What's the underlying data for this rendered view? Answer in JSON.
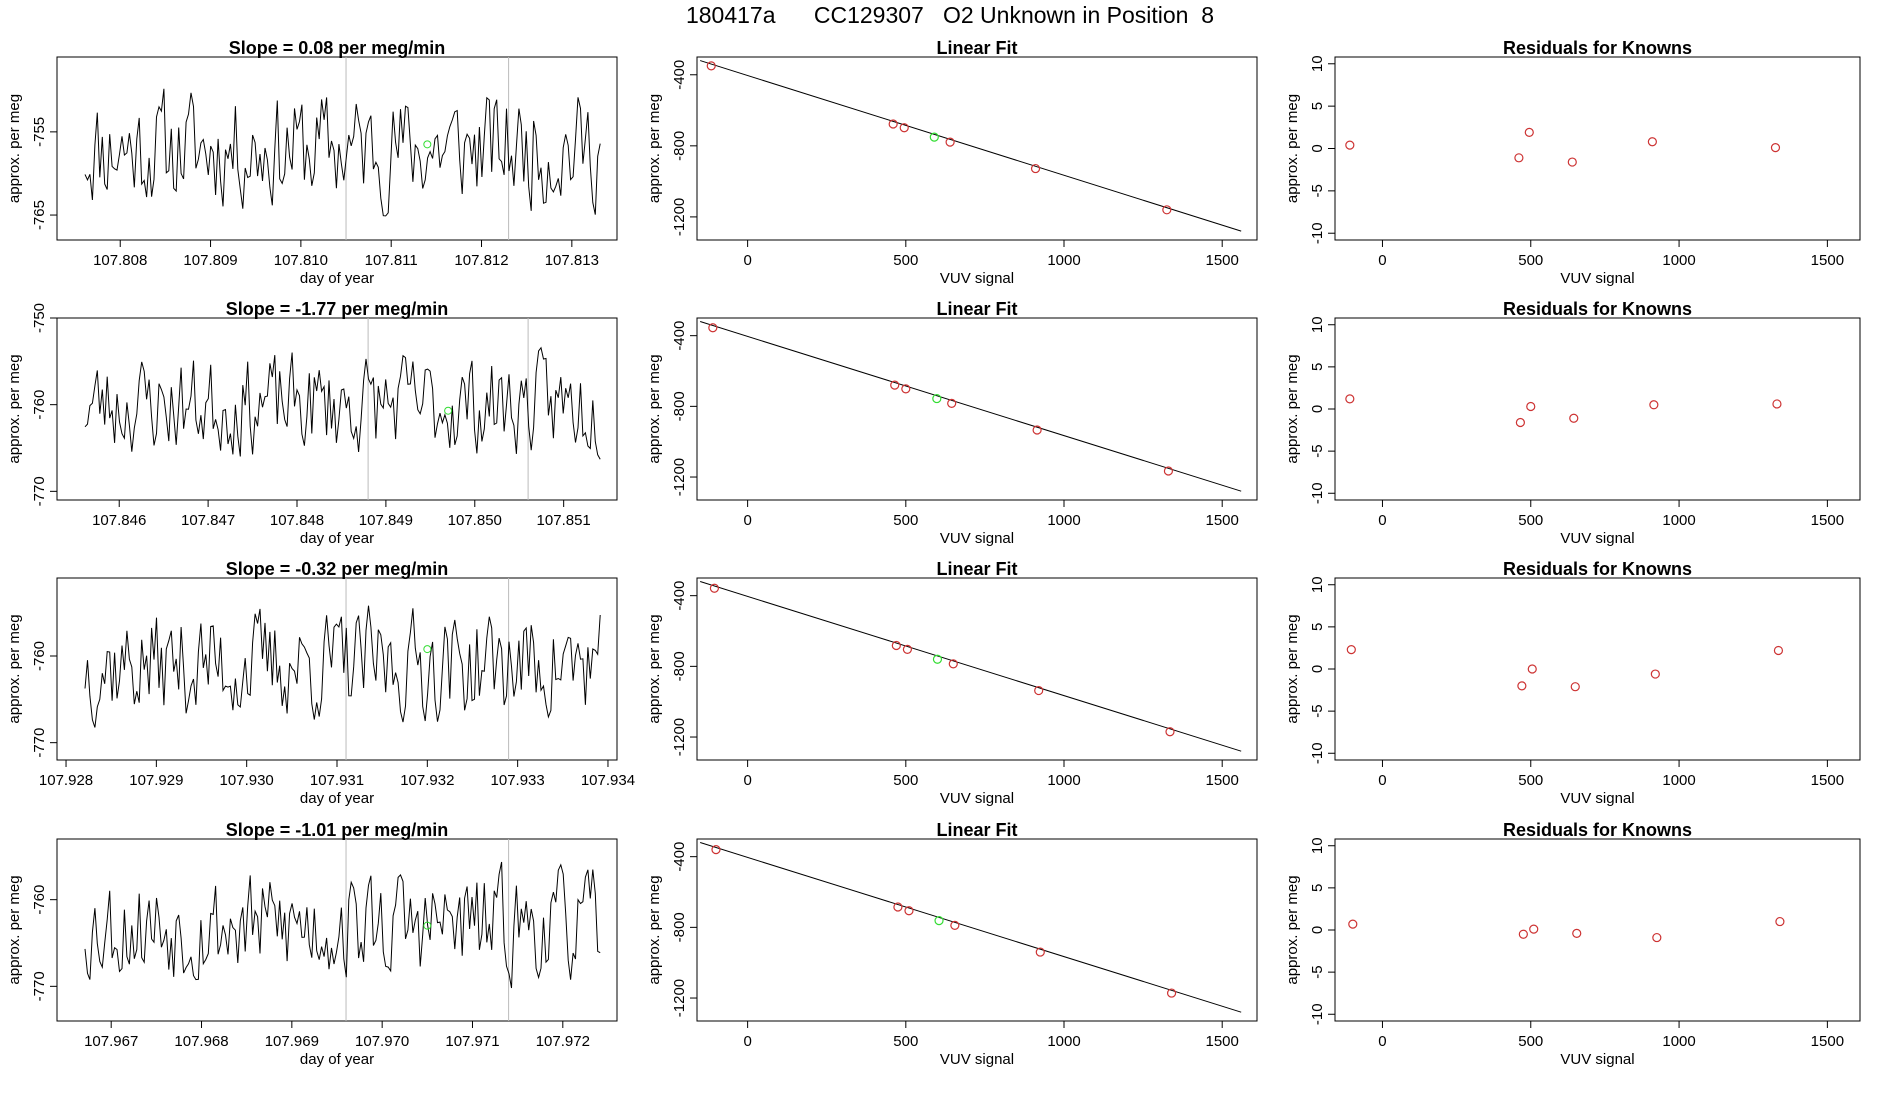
{
  "page_title": "180417a      CC129307   O2 Unknown in Position  8",
  "colors": {
    "line": "#000000",
    "frame": "#000000",
    "vline": "#bbbbbb",
    "known_point": "#cd3333",
    "unknown_point": "#33dd33"
  },
  "chart_data": [
    {
      "type": "line",
      "title": "Slope =  0.08  per meg/min",
      "xlabel": "day of year",
      "ylabel": "approx. per meg",
      "xlim": [
        107.8073,
        107.8135
      ],
      "ylim": [
        -768,
        -746
      ],
      "x_ticks": [
        107.808,
        107.809,
        107.81,
        107.811,
        107.812,
        107.813
      ],
      "x_tick_labels": [
        "107.808",
        "107.809",
        "107.810",
        "107.811",
        "107.812",
        "107.813"
      ],
      "y_ticks": [
        -765,
        -755
      ],
      "y_tick_labels": [
        "-765",
        "-755"
      ],
      "vlines": [
        107.8105,
        107.8123
      ],
      "seed": 11,
      "mean": -757,
      "amplitude": 6,
      "unknown_point": {
        "x": 107.8114,
        "y": -756.5
      }
    },
    {
      "type": "line",
      "title": "Slope =  -1.77  per meg/min",
      "xlabel": "day of year",
      "ylabel": "approx. per meg",
      "xlim": [
        107.8453,
        107.8516
      ],
      "ylim": [
        -771,
        -750
      ],
      "x_ticks": [
        107.846,
        107.847,
        107.848,
        107.849,
        107.85,
        107.851
      ],
      "x_tick_labels": [
        "107.846",
        "107.847",
        "107.848",
        "107.849",
        "107.850",
        "107.851"
      ],
      "y_ticks": [
        -770,
        -760,
        -750
      ],
      "y_tick_labels": [
        "-770",
        "-760",
        "-750"
      ],
      "vlines": [
        107.8488,
        107.8506
      ],
      "seed": 23,
      "mean": -760,
      "amplitude": 5,
      "unknown_point": {
        "x": 107.8497,
        "y": -760.7
      }
    },
    {
      "type": "line",
      "title": "Slope =  -0.32  per meg/min",
      "xlabel": "day of year",
      "ylabel": "approx. per meg",
      "xlim": [
        107.9279,
        107.9341
      ],
      "ylim": [
        -772,
        -751
      ],
      "x_ticks": [
        107.928,
        107.929,
        107.93,
        107.931,
        107.932,
        107.933,
        107.934
      ],
      "x_tick_labels": [
        "107.928",
        "107.929",
        "107.930",
        "107.931",
        "107.932",
        "107.933",
        "107.934"
      ],
      "y_ticks": [
        -770,
        -760
      ],
      "y_tick_labels": [
        "-770",
        "-760"
      ],
      "vlines": [
        107.9311,
        107.9329
      ],
      "seed": 37,
      "mean": -761,
      "amplitude": 5.5,
      "unknown_point": {
        "x": 107.932,
        "y": -759.2
      }
    },
    {
      "type": "line",
      "title": "Slope =  -1.01  per meg/min",
      "xlabel": "day of year",
      "ylabel": "approx. per meg",
      "xlim": [
        107.9664,
        107.9726
      ],
      "ylim": [
        -774,
        -753
      ],
      "x_ticks": [
        107.967,
        107.968,
        107.969,
        107.97,
        107.971,
        107.972
      ],
      "x_tick_labels": [
        "107.967",
        "107.968",
        "107.969",
        "107.970",
        "107.971",
        "107.972"
      ],
      "y_ticks": [
        -770,
        -760
      ],
      "y_tick_labels": [
        "-770",
        "-760"
      ],
      "vlines": [
        107.9696,
        107.9714
      ],
      "seed": 53,
      "mean": -763,
      "amplitude": 5.5,
      "unknown_point": {
        "x": 107.9705,
        "y": -763
      }
    },
    {
      "type": "scatter",
      "title": "Linear Fit",
      "xlabel": "VUV signal",
      "ylabel": "approx. per meg",
      "xlim": [
        -160,
        1610
      ],
      "ylim": [
        -1330,
        -300
      ],
      "x_ticks": [
        0,
        500,
        1000,
        1500
      ],
      "x_tick_labels": [
        "0",
        "500",
        "1000",
        "1500"
      ],
      "y_ticks": [
        -400,
        -800,
        -1200
      ],
      "y_tick_labels": [
        "-400",
        "-800",
        "-1200"
      ],
      "fit_line": {
        "x": [
          -150,
          1560
        ],
        "y": [
          -320,
          -1280
        ]
      },
      "known_points": [
        {
          "x": -115,
          "y": -350
        },
        {
          "x": 460,
          "y": -677
        },
        {
          "x": 495,
          "y": -698
        },
        {
          "x": 640,
          "y": -779
        },
        {
          "x": 910,
          "y": -928
        },
        {
          "x": 1325,
          "y": -1160
        }
      ],
      "unknown_point": {
        "x": 590,
        "y": -751
      }
    },
    {
      "type": "scatter",
      "title": "Linear Fit",
      "xlabel": "VUV signal",
      "ylabel": "approx. per meg",
      "xlim": [
        -160,
        1610
      ],
      "ylim": [
        -1330,
        -300
      ],
      "x_ticks": [
        0,
        500,
        1000,
        1500
      ],
      "x_tick_labels": [
        "0",
        "500",
        "1000",
        "1500"
      ],
      "y_ticks": [
        -400,
        -800,
        -1200
      ],
      "y_tick_labels": [
        "-400",
        "-800",
        "-1200"
      ],
      "fit_line": {
        "x": [
          -150,
          1560
        ],
        "y": [
          -320,
          -1280
        ]
      },
      "known_points": [
        {
          "x": -110,
          "y": -355
        },
        {
          "x": 465,
          "y": -680
        },
        {
          "x": 500,
          "y": -701
        },
        {
          "x": 645,
          "y": -783
        },
        {
          "x": 915,
          "y": -934
        },
        {
          "x": 1330,
          "y": -1166
        }
      ],
      "unknown_point": {
        "x": 598,
        "y": -756
      }
    },
    {
      "type": "scatter",
      "title": "Linear Fit",
      "xlabel": "VUV signal",
      "ylabel": "approx. per meg",
      "xlim": [
        -160,
        1610
      ],
      "ylim": [
        -1330,
        -300
      ],
      "x_ticks": [
        0,
        500,
        1000,
        1500
      ],
      "x_tick_labels": [
        "0",
        "500",
        "1000",
        "1500"
      ],
      "y_ticks": [
        -400,
        -800,
        -1200
      ],
      "y_tick_labels": [
        "-400",
        "-800",
        "-1200"
      ],
      "fit_line": {
        "x": [
          -150,
          1560
        ],
        "y": [
          -320,
          -1280
        ]
      },
      "known_points": [
        {
          "x": -105,
          "y": -358
        },
        {
          "x": 470,
          "y": -682
        },
        {
          "x": 505,
          "y": -704
        },
        {
          "x": 650,
          "y": -786
        },
        {
          "x": 920,
          "y": -937
        },
        {
          "x": 1335,
          "y": -1170
        }
      ],
      "unknown_point": {
        "x": 600,
        "y": -760
      }
    },
    {
      "type": "scatter",
      "title": "Linear Fit",
      "xlabel": "VUV signal",
      "ylabel": "approx. per meg",
      "xlim": [
        -160,
        1610
      ],
      "ylim": [
        -1330,
        -300
      ],
      "x_ticks": [
        0,
        500,
        1000,
        1500
      ],
      "x_tick_labels": [
        "0",
        "500",
        "1000",
        "1500"
      ],
      "y_ticks": [
        -400,
        -800,
        -1200
      ],
      "y_tick_labels": [
        "-400",
        "-800",
        "-1200"
      ],
      "fit_line": {
        "x": [
          -150,
          1560
        ],
        "y": [
          -320,
          -1280
        ]
      },
      "known_points": [
        {
          "x": -100,
          "y": -360
        },
        {
          "x": 475,
          "y": -685
        },
        {
          "x": 510,
          "y": -706
        },
        {
          "x": 655,
          "y": -789
        },
        {
          "x": 925,
          "y": -940
        },
        {
          "x": 1340,
          "y": -1172
        }
      ],
      "unknown_point": {
        "x": 605,
        "y": -762
      }
    },
    {
      "type": "scatter",
      "title": "Residuals for Knowns",
      "xlabel": "VUV signal",
      "ylabel": "approx. per meg",
      "xlim": [
        -160,
        1610
      ],
      "ylim": [
        -10.8,
        10.8
      ],
      "x_ticks": [
        0,
        500,
        1000,
        1500
      ],
      "x_tick_labels": [
        "0",
        "500",
        "1000",
        "1500"
      ],
      "y_ticks": [
        10,
        5,
        0,
        -5,
        -10
      ],
      "y_tick_labels": [
        "10",
        "5",
        "0",
        "-5",
        "-10"
      ],
      "known_points": [
        {
          "x": -110,
          "y": 0.4
        },
        {
          "x": 460,
          "y": -1.1
        },
        {
          "x": 495,
          "y": 1.9
        },
        {
          "x": 640,
          "y": -1.6
        },
        {
          "x": 910,
          "y": 0.8
        },
        {
          "x": 1325,
          "y": 0.1
        }
      ]
    },
    {
      "type": "scatter",
      "title": "Residuals for Knowns",
      "xlabel": "VUV signal",
      "ylabel": "approx. per meg",
      "xlim": [
        -160,
        1610
      ],
      "ylim": [
        -10.8,
        10.8
      ],
      "x_ticks": [
        0,
        500,
        1000,
        1500
      ],
      "x_tick_labels": [
        "0",
        "500",
        "1000",
        "1500"
      ],
      "y_ticks": [
        10,
        5,
        0,
        -5,
        -10
      ],
      "y_tick_labels": [
        "10",
        "5",
        "0",
        "-5",
        "-10"
      ],
      "known_points": [
        {
          "x": -110,
          "y": 1.2
        },
        {
          "x": 465,
          "y": -1.6
        },
        {
          "x": 500,
          "y": 0.3
        },
        {
          "x": 645,
          "y": -1.1
        },
        {
          "x": 915,
          "y": 0.5
        },
        {
          "x": 1330,
          "y": 0.6
        }
      ]
    },
    {
      "type": "scatter",
      "title": "Residuals for Knowns",
      "xlabel": "VUV signal",
      "ylabel": "approx. per meg",
      "xlim": [
        -160,
        1610
      ],
      "ylim": [
        -10.8,
        10.8
      ],
      "x_ticks": [
        0,
        500,
        1000,
        1500
      ],
      "x_tick_labels": [
        "0",
        "500",
        "1000",
        "1500"
      ],
      "y_ticks": [
        10,
        5,
        0,
        -5,
        -10
      ],
      "y_tick_labels": [
        "10",
        "5",
        "0",
        "-5",
        "-10"
      ],
      "known_points": [
        {
          "x": -105,
          "y": 2.3
        },
        {
          "x": 470,
          "y": -2.0
        },
        {
          "x": 505,
          "y": 0.0
        },
        {
          "x": 650,
          "y": -2.1
        },
        {
          "x": 920,
          "y": -0.6
        },
        {
          "x": 1335,
          "y": 2.2
        }
      ]
    },
    {
      "type": "scatter",
      "title": "Residuals for Knowns",
      "xlabel": "VUV signal",
      "ylabel": "approx. per meg",
      "xlim": [
        -160,
        1610
      ],
      "ylim": [
        -10.8,
        10.8
      ],
      "x_ticks": [
        0,
        500,
        1000,
        1500
      ],
      "x_tick_labels": [
        "0",
        "500",
        "1000",
        "1500"
      ],
      "y_ticks": [
        10,
        5,
        0,
        -5,
        -10
      ],
      "y_tick_labels": [
        "10",
        "5",
        "0",
        "-5",
        "-10"
      ],
      "known_points": [
        {
          "x": -100,
          "y": 0.7
        },
        {
          "x": 475,
          "y": -0.5
        },
        {
          "x": 510,
          "y": 0.1
        },
        {
          "x": 655,
          "y": -0.4
        },
        {
          "x": 925,
          "y": -0.9
        },
        {
          "x": 1340,
          "y": 1.0
        }
      ]
    }
  ]
}
